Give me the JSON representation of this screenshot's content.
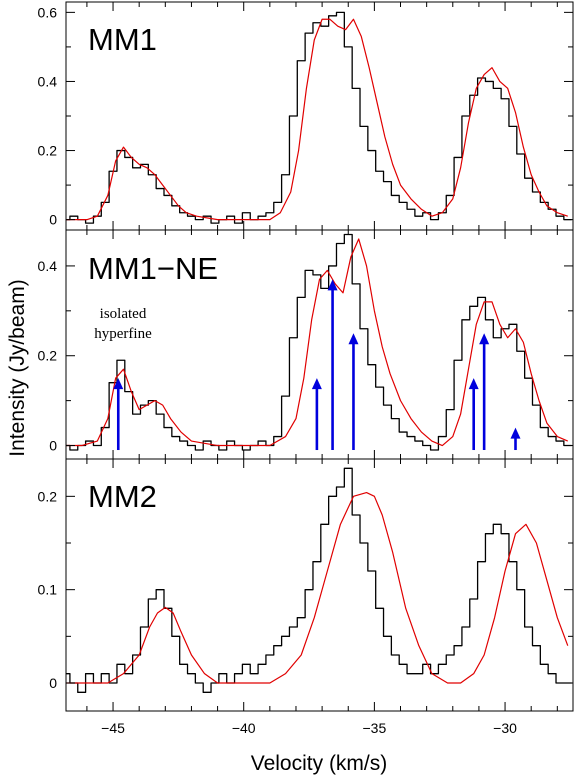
{
  "chart_data": {
    "type": "line",
    "xlabel": "Velocity (km/s)",
    "ylabel": "Intensity (Jy/beam)",
    "xlim": [
      -46.8,
      -27.4
    ],
    "x_ticks": [
      -45,
      -40,
      -35,
      -30
    ],
    "x_tick_labels": [
      "−45",
      "−40",
      "−35",
      "−30"
    ],
    "colors": {
      "observed": "#000000",
      "fit": "#e00000",
      "arrows": "#0000dd",
      "frame": "#000000"
    },
    "panels": [
      {
        "title": "MM1",
        "ylim": [
          -0.03,
          0.63
        ],
        "y_ticks": [
          0,
          0.2,
          0.4,
          0.6
        ],
        "y_tick_labels": [
          "0",
          "0.2",
          "0.4",
          "0.6"
        ],
        "series": [
          {
            "style": "step",
            "color": "#000000",
            "x": [
              -46.8,
              -46.5,
              -46.2,
              -45.9,
              -45.6,
              -45.3,
              -45.0,
              -44.7,
              -44.4,
              -44.1,
              -43.8,
              -43.5,
              -43.2,
              -42.9,
              -42.6,
              -42.3,
              -42.0,
              -41.7,
              -41.4,
              -41.1,
              -40.8,
              -40.5,
              -40.2,
              -39.9,
              -39.6,
              -39.3,
              -39.0,
              -38.7,
              -38.4,
              -38.1,
              -37.8,
              -37.5,
              -37.2,
              -36.9,
              -36.6,
              -36.3,
              -36.0,
              -35.7,
              -35.4,
              -35.1,
              -34.8,
              -34.5,
              -34.2,
              -33.9,
              -33.6,
              -33.3,
              -33.0,
              -32.7,
              -32.4,
              -32.1,
              -31.8,
              -31.5,
              -31.2,
              -30.9,
              -30.6,
              -30.3,
              -30.0,
              -29.7,
              -29.4,
              -29.1,
              -28.8,
              -28.5,
              -28.2,
              -27.9,
              -27.6
            ],
            "y": [
              0.0,
              0.01,
              0.0,
              -0.01,
              0.01,
              0.05,
              0.14,
              0.2,
              0.18,
              0.15,
              0.16,
              0.13,
              0.09,
              0.07,
              0.04,
              0.02,
              0.01,
              0.0,
              0.01,
              -0.01,
              0.0,
              0.01,
              -0.01,
              0.02,
              0.0,
              0.01,
              0.02,
              0.05,
              0.13,
              0.3,
              0.46,
              0.54,
              0.57,
              0.56,
              0.59,
              0.6,
              0.5,
              0.38,
              0.27,
              0.2,
              0.14,
              0.11,
              0.07,
              0.05,
              0.03,
              0.01,
              0.02,
              0.0,
              0.02,
              0.07,
              0.18,
              0.3,
              0.36,
              0.41,
              0.4,
              0.38,
              0.35,
              0.27,
              0.19,
              0.12,
              0.08,
              0.05,
              0.03,
              0.01,
              0.0
            ]
          },
          {
            "style": "line",
            "color": "#e00000",
            "x": [
              -46.8,
              -46.4,
              -46.0,
              -45.6,
              -45.2,
              -44.9,
              -44.6,
              -44.3,
              -44.0,
              -43.7,
              -43.4,
              -43.1,
              -42.8,
              -42.5,
              -42.2,
              -41.8,
              -41.0,
              -40.0,
              -39.0,
              -38.6,
              -38.2,
              -37.9,
              -37.6,
              -37.3,
              -37.0,
              -36.7,
              -36.4,
              -36.1,
              -35.8,
              -35.5,
              -35.2,
              -34.9,
              -34.6,
              -34.3,
              -34.0,
              -33.6,
              -33.2,
              -32.8,
              -32.4,
              -32.0,
              -31.7,
              -31.4,
              -31.1,
              -30.8,
              -30.5,
              -30.2,
              -29.9,
              -29.6,
              -29.3,
              -29.0,
              -28.7,
              -28.4,
              -28.0,
              -27.6
            ],
            "y": [
              0.0,
              0.0,
              0.0,
              0.01,
              0.07,
              0.17,
              0.21,
              0.18,
              0.16,
              0.15,
              0.13,
              0.1,
              0.07,
              0.04,
              0.02,
              0.01,
              0.0,
              0.0,
              0.0,
              0.02,
              0.08,
              0.2,
              0.38,
              0.52,
              0.58,
              0.58,
              0.56,
              0.55,
              0.58,
              0.53,
              0.44,
              0.34,
              0.24,
              0.16,
              0.1,
              0.06,
              0.03,
              0.01,
              0.02,
              0.06,
              0.15,
              0.28,
              0.38,
              0.42,
              0.44,
              0.4,
              0.38,
              0.31,
              0.21,
              0.13,
              0.08,
              0.04,
              0.02,
              0.01
            ]
          }
        ]
      },
      {
        "title": "MM1−NE",
        "ylim": [
          -0.03,
          0.48
        ],
        "y_ticks": [
          0,
          0.2,
          0.4
        ],
        "y_tick_labels": [
          "0",
          "0.2",
          "0.4"
        ],
        "annotation": [
          "isolated",
          "hyperfine"
        ],
        "arrows": [
          {
            "x": -44.8,
            "top": 0.15
          },
          {
            "x": -37.2,
            "top": 0.15
          },
          {
            "x": -36.6,
            "top": 0.37
          },
          {
            "x": -35.8,
            "top": 0.25
          },
          {
            "x": -31.2,
            "top": 0.15
          },
          {
            "x": -30.8,
            "top": 0.25
          },
          {
            "x": -29.6,
            "top": 0.04
          }
        ],
        "series": [
          {
            "style": "step",
            "color": "#000000",
            "x": [
              -46.8,
              -46.5,
              -46.2,
              -45.9,
              -45.6,
              -45.3,
              -45.0,
              -44.7,
              -44.4,
              -44.1,
              -43.8,
              -43.5,
              -43.2,
              -42.9,
              -42.6,
              -42.3,
              -42.0,
              -41.7,
              -41.4,
              -41.1,
              -40.8,
              -40.5,
              -40.2,
              -39.9,
              -39.6,
              -39.3,
              -39.0,
              -38.7,
              -38.4,
              -38.1,
              -37.8,
              -37.5,
              -37.2,
              -36.9,
              -36.6,
              -36.3,
              -36.0,
              -35.7,
              -35.4,
              -35.1,
              -34.8,
              -34.5,
              -34.2,
              -33.9,
              -33.6,
              -33.3,
              -33.0,
              -32.7,
              -32.4,
              -32.1,
              -31.8,
              -31.5,
              -31.2,
              -30.9,
              -30.6,
              -30.3,
              -30.0,
              -29.7,
              -29.4,
              -29.1,
              -28.8,
              -28.5,
              -28.2,
              -27.9,
              -27.6
            ],
            "y": [
              0.0,
              -0.01,
              0.0,
              0.01,
              0.0,
              0.04,
              0.14,
              0.19,
              0.12,
              0.07,
              0.09,
              0.1,
              0.07,
              0.04,
              0.02,
              0.01,
              0.0,
              -0.01,
              0.01,
              0.0,
              -0.01,
              0.01,
              0.0,
              -0.01,
              0.0,
              0.01,
              0.0,
              0.02,
              0.11,
              0.24,
              0.33,
              0.39,
              0.38,
              0.35,
              0.4,
              0.45,
              0.47,
              0.36,
              0.26,
              0.18,
              0.13,
              0.09,
              0.06,
              0.03,
              0.02,
              0.01,
              0.0,
              -0.01,
              0.02,
              0.08,
              0.19,
              0.28,
              0.31,
              0.33,
              0.28,
              0.24,
              0.26,
              0.27,
              0.21,
              0.15,
              0.09,
              0.04,
              0.02,
              0.01,
              0.0
            ]
          },
          {
            "style": "line",
            "color": "#e00000",
            "x": [
              -46.8,
              -46.2,
              -45.6,
              -45.2,
              -44.9,
              -44.6,
              -44.3,
              -44.0,
              -43.7,
              -43.4,
              -43.1,
              -42.8,
              -42.4,
              -42.0,
              -41.0,
              -40.0,
              -39.0,
              -38.4,
              -38.0,
              -37.7,
              -37.4,
              -37.1,
              -36.8,
              -36.5,
              -36.2,
              -35.9,
              -35.6,
              -35.3,
              -35.0,
              -34.7,
              -34.4,
              -34.0,
              -33.6,
              -33.2,
              -32.8,
              -32.4,
              -32.0,
              -31.7,
              -31.4,
              -31.1,
              -30.8,
              -30.5,
              -30.2,
              -29.9,
              -29.6,
              -29.3,
              -29.0,
              -28.7,
              -28.4,
              -28.0,
              -27.6
            ],
            "y": [
              0.0,
              0.0,
              0.01,
              0.06,
              0.15,
              0.17,
              0.12,
              0.08,
              0.09,
              0.1,
              0.09,
              0.06,
              0.03,
              0.01,
              0.0,
              0.0,
              0.0,
              0.02,
              0.06,
              0.15,
              0.28,
              0.37,
              0.39,
              0.36,
              0.34,
              0.42,
              0.46,
              0.4,
              0.3,
              0.22,
              0.16,
              0.1,
              0.06,
              0.03,
              0.01,
              0.0,
              0.02,
              0.07,
              0.17,
              0.27,
              0.32,
              0.32,
              0.27,
              0.24,
              0.26,
              0.23,
              0.16,
              0.1,
              0.05,
              0.02,
              0.01
            ]
          }
        ]
      },
      {
        "title": "MM2",
        "ylim": [
          -0.03,
          0.24
        ],
        "y_ticks": [
          0,
          0.1,
          0.2
        ],
        "y_tick_labels": [
          "0",
          "0.1",
          "0.2"
        ],
        "series": [
          {
            "style": "step",
            "color": "#000000",
            "x": [
              -46.8,
              -46.5,
              -46.2,
              -45.9,
              -45.6,
              -45.3,
              -45.0,
              -44.7,
              -44.4,
              -44.1,
              -43.8,
              -43.5,
              -43.2,
              -42.9,
              -42.6,
              -42.3,
              -42.0,
              -41.7,
              -41.4,
              -41.1,
              -40.8,
              -40.5,
              -40.2,
              -39.9,
              -39.6,
              -39.3,
              -39.0,
              -38.7,
              -38.4,
              -38.1,
              -37.8,
              -37.5,
              -37.2,
              -36.9,
              -36.6,
              -36.3,
              -36.0,
              -35.7,
              -35.4,
              -35.1,
              -34.8,
              -34.5,
              -34.2,
              -33.9,
              -33.6,
              -33.3,
              -33.0,
              -32.7,
              -32.4,
              -32.1,
              -31.8,
              -31.5,
              -31.2,
              -30.9,
              -30.6,
              -30.3,
              -30.0,
              -29.7,
              -29.4,
              -29.1,
              -28.8,
              -28.5,
              -28.2,
              -27.9,
              -27.6
            ],
            "y": [
              0.01,
              0.0,
              -0.01,
              0.01,
              0.0,
              0.01,
              0.0,
              0.02,
              0.01,
              0.03,
              0.06,
              0.09,
              0.1,
              0.08,
              0.05,
              0.02,
              0.01,
              0.0,
              -0.01,
              0.0,
              0.01,
              0.0,
              0.01,
              0.02,
              0.01,
              0.02,
              0.03,
              0.04,
              0.05,
              0.06,
              0.07,
              0.1,
              0.13,
              0.17,
              0.2,
              0.21,
              0.23,
              0.18,
              0.15,
              0.12,
              0.08,
              0.05,
              0.03,
              0.02,
              0.01,
              0.01,
              0.02,
              0.01,
              0.02,
              0.03,
              0.04,
              0.06,
              0.09,
              0.13,
              0.16,
              0.17,
              0.16,
              0.13,
              0.1,
              0.06,
              0.04,
              0.02,
              0.01,
              0.0,
              0.0
            ]
          },
          {
            "style": "line",
            "color": "#e00000",
            "x": [
              -46.8,
              -46.0,
              -45.2,
              -44.6,
              -44.0,
              -43.6,
              -43.3,
              -43.0,
              -42.7,
              -42.4,
              -42.0,
              -41.5,
              -41.0,
              -40.0,
              -39.0,
              -38.4,
              -37.8,
              -37.3,
              -36.8,
              -36.3,
              -35.8,
              -35.3,
              -35.0,
              -34.7,
              -34.3,
              -33.8,
              -33.3,
              -32.8,
              -32.2,
              -31.7,
              -31.2,
              -30.8,
              -30.4,
              -30.0,
              -29.6,
              -29.2,
              -28.8,
              -28.4,
              -28.0,
              -27.6
            ],
            "y": [
              0.0,
              0.0,
              0.0,
              0.01,
              0.03,
              0.06,
              0.075,
              0.081,
              0.075,
              0.055,
              0.03,
              0.01,
              0.0,
              0.0,
              0.0,
              0.01,
              0.03,
              0.07,
              0.12,
              0.17,
              0.2,
              0.204,
              0.2,
              0.18,
              0.14,
              0.08,
              0.04,
              0.01,
              0.0,
              0.0,
              0.01,
              0.03,
              0.07,
              0.12,
              0.16,
              0.17,
              0.15,
              0.11,
              0.07,
              0.04
            ]
          }
        ]
      }
    ]
  }
}
